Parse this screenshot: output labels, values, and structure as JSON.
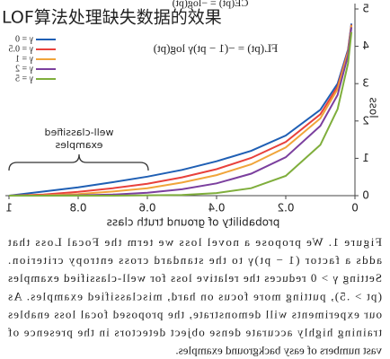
{
  "header_title": "LOF算法处理缺失数据的效果",
  "chart_data": {
    "type": "line",
    "formula_top": "CE(pt) = −log(pt)",
    "formula": "FL(pt) = −(1 − pt)γ log(pt)",
    "annotation": "well-classified examples",
    "xlabel": "probability of ground truth class",
    "ylabel": "loss",
    "x": [
      0.01,
      0.02,
      0.05,
      0.1,
      0.2,
      0.3,
      0.4,
      0.5,
      0.6,
      0.7,
      0.8,
      0.9,
      1
    ],
    "series": [
      {
        "name": "γ = 0",
        "color": "#1f5fb4",
        "values": [
          4.61,
          3.91,
          3.0,
          2.3,
          1.61,
          1.2,
          0.92,
          0.69,
          0.51,
          0.36,
          0.22,
          0.11,
          0
        ]
      },
      {
        "name": "γ = 0.5",
        "color": "#e8413c",
        "values": [
          4.58,
          3.87,
          2.92,
          2.18,
          1.44,
          1.01,
          0.71,
          0.49,
          0.32,
          0.2,
          0.1,
          0.03,
          0
        ]
      },
      {
        "name": "γ = 1",
        "color": "#f0a53a",
        "values": [
          4.56,
          3.83,
          2.85,
          2.07,
          1.29,
          0.84,
          0.55,
          0.35,
          0.2,
          0.11,
          0.04,
          0.01,
          0
        ]
      },
      {
        "name": "γ = 2",
        "color": "#7b3f9e",
        "values": [
          4.51,
          3.76,
          2.7,
          1.87,
          1.03,
          0.59,
          0.33,
          0.17,
          0.08,
          0.03,
          0.01,
          0,
          0
        ]
      },
      {
        "name": "γ = 5",
        "color": "#7fae3c",
        "values": [
          4.38,
          3.54,
          2.32,
          1.36,
          0.53,
          0.2,
          0.07,
          0.02,
          0.01,
          0,
          0,
          0,
          0
        ]
      }
    ],
    "xlim": [
      0,
      1
    ],
    "ylim": [
      0,
      5
    ],
    "xticks": [
      0,
      0.2,
      0.4,
      0.6,
      0.8,
      1
    ],
    "yticks": [
      0,
      1,
      2,
      3,
      4,
      5
    ]
  },
  "caption": [
    "Figure 1. We propose a novel loss we term the Focal Loss that",
    "adds a factor (1 − pt)γ to the standard cross entropy criterion.",
    "Setting γ > 0 reduces the relative loss for well-classified examples",
    "(pt > .5), putting more focus on hard, misclassified examples. As",
    "our experiments will demonstrate, the proposed focal loss enables",
    "training highly accurate dense object detectors in the presence of",
    "vast numbers of easy background examples."
  ]
}
